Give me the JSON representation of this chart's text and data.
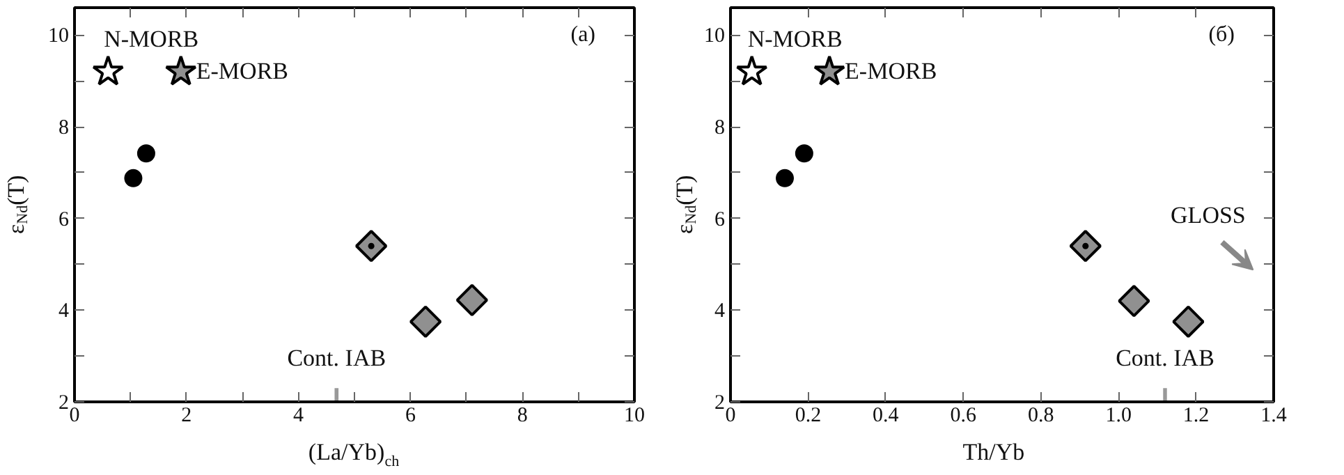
{
  "chart_data": [
    {
      "type": "scatter",
      "title": "(a)",
      "xlabel": "(La/Yb)$_{ch}$",
      "ylabel": "ε$_{Nd}$(T)",
      "xlim": [
        0,
        10
      ],
      "ylim": [
        2,
        10.6
      ],
      "xticks": [
        0,
        {
          "value": 1,
          "label": null
        },
        2,
        {
          "value": 3,
          "label": null
        },
        4,
        {
          "value": 5,
          "label": null
        },
        6,
        {
          "value": 7,
          "label": null
        },
        8,
        {
          "value": 9,
          "label": null
        },
        10
      ],
      "yticks": [
        2,
        {
          "value": 3,
          "label": null
        },
        4,
        {
          "value": 5,
          "label": null
        },
        6,
        {
          "value": 7,
          "label": null
        },
        8,
        {
          "value": 9,
          "label": null
        },
        10
      ],
      "grid": false,
      "series": [
        {
          "marker": "circle",
          "color": "#000000",
          "x": [
            1.05,
            1.28
          ],
          "values": [
            6.88,
            7.42
          ]
        },
        {
          "marker": "diamond",
          "color": "#909090",
          "x": [
            5.3,
            6.27,
            7.1
          ],
          "values": [
            5.4,
            3.75,
            4.22
          ]
        },
        {
          "marker": "dot",
          "color": "#000000",
          "x": [
            5.3
          ],
          "values": [
            5.4
          ]
        },
        {
          "marker": "star",
          "color": "#ffffff",
          "name": "N-MORB",
          "x": [
            0.6
          ],
          "values": [
            9.2
          ]
        },
        {
          "marker": "star",
          "color": "#909090",
          "name": "E-MORB",
          "x": [
            1.9
          ],
          "values": [
            9.2
          ]
        },
        {
          "type": "bar",
          "color": "#999999",
          "name": "Cont. IAB",
          "x": [
            4.68
          ],
          "values": [
            2.3
          ]
        }
      ]
    },
    {
      "type": "scatter",
      "title": "(б)",
      "xlabel": "Th/Yb",
      "ylabel": "ε$_{Nd}$(T)",
      "xlim": [
        0,
        1.4
      ],
      "ylim": [
        2,
        10.6
      ],
      "xticks": [
        0,
        0.2,
        0.4,
        0.6,
        0.8,
        {
          "value": 1.0,
          "label": "1.0"
        },
        1.2,
        1.4
      ],
      "yticks": [
        2,
        {
          "value": 3,
          "label": null
        },
        4,
        {
          "value": 5,
          "label": null
        },
        6,
        {
          "value": 7,
          "label": null
        },
        8,
        {
          "value": 9,
          "label": null
        },
        10
      ],
      "grid": false,
      "annotations": [
        "GLOSS"
      ],
      "series": [
        {
          "marker": "circle",
          "color": "#000000",
          "x": [
            0.14,
            0.19
          ],
          "values": [
            6.88,
            7.42
          ]
        },
        {
          "marker": "diamond",
          "color": "#909090",
          "x": [
            0.915,
            1.04,
            1.18
          ],
          "values": [
            5.4,
            4.2,
            3.75
          ]
        },
        {
          "marker": "dot",
          "color": "#000000",
          "x": [
            0.915
          ],
          "values": [
            5.4
          ]
        },
        {
          "marker": "star",
          "color": "#ffffff",
          "name": "N-MORB",
          "x": [
            0.055
          ],
          "values": [
            9.2
          ]
        },
        {
          "marker": "star",
          "color": "#909090",
          "name": "E-MORB",
          "x": [
            0.255
          ],
          "values": [
            9.2
          ]
        },
        {
          "type": "bar",
          "color": "#999999",
          "name": "Cont. IAB",
          "x": [
            1.12
          ],
          "values": [
            2.3
          ]
        }
      ]
    }
  ]
}
